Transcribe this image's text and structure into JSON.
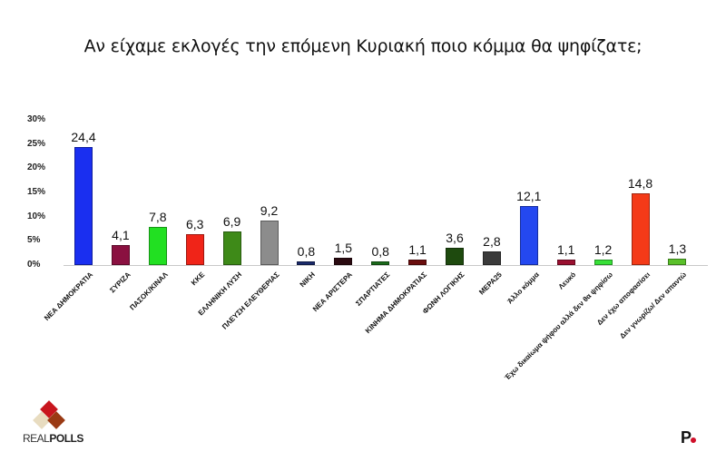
{
  "chart_data": {
    "type": "bar",
    "title": "Αν είχαμε εκλογές την επόμενη Κυριακή ποιο κόμμα θα ψηφίζατε;",
    "xlabel": "",
    "ylabel": "",
    "ylim": [
      0,
      30
    ],
    "yticks": [
      "0%",
      "5%",
      "10%",
      "15%",
      "20%",
      "25%",
      "30%"
    ],
    "grid": false,
    "legend": null,
    "categories": [
      "ΝΕΑ ΔΗΜΟΚΡΑΤΙΑ",
      "ΣΥΡΙΖΑ",
      "ΠΑΣΟΚ/ΚΙΝΑΛ",
      "ΚΚΕ",
      "ΕΛΛΗΝΙΚΗ ΛΥΣΗ",
      "ΠΛΕΥΣΗ ΕΛΕΥΘΕΡΙΑΣ",
      "ΝΙΚΗ",
      "ΝΕΑ ΑΡΙΣΤΕΡΑ",
      "ΣΠΑΡΤΙΑΤΕΣ",
      "ΚΙΝΗΜΑ ΔΗΜΟΚΡΑΤΙΑΣ",
      "ΦΩΝΗ ΛΟΓΙΚΗΣ",
      "ΜΕΡΑ25",
      "Άλλο κόμμα",
      "Λευκό",
      "Έχω δικαίωμα ψήφου αλλά δεν θα ψηφίσω",
      "Δεν έχω αποφασίσει",
      "Δεν γνωρίζω/ Δεν απαντώ"
    ],
    "values": [
      24.4,
      4.1,
      7.8,
      6.3,
      6.9,
      9.2,
      0.8,
      1.5,
      0.8,
      1.1,
      3.6,
      2.8,
      12.1,
      1.1,
      1.2,
      14.8,
      1.3
    ],
    "value_labels": [
      "24,4",
      "4,1",
      "7,8",
      "6,3",
      "6,9",
      "9,2",
      "0,8",
      "1,5",
      "0,8",
      "1,1",
      "3,6",
      "2,8",
      "12,1",
      "1,1",
      "1,2",
      "14,8",
      "1,3"
    ],
    "colors": [
      "#1a2ff0",
      "#8a1040",
      "#22e022",
      "#f02418",
      "#3e8a18",
      "#8c8c8c",
      "#1a2a6a",
      "#2a0a10",
      "#1a6a1a",
      "#6a0e0e",
      "#1e4a0e",
      "#3a3a3a",
      "#2448f0",
      "#9a1030",
      "#38e038",
      "#f43a18",
      "#5ac02a"
    ]
  },
  "branding": {
    "left_logo": "REALPOLLS",
    "left_logo_light": "REAL",
    "left_logo_bold": "POLLS",
    "right_logo": "P"
  }
}
